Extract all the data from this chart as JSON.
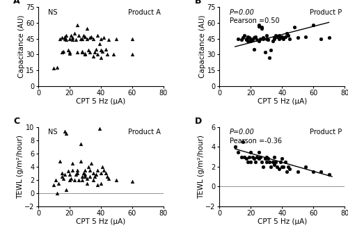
{
  "panel_A": {
    "label": "A",
    "stat": "NS",
    "stat_italic": false,
    "product": "Product A",
    "marker": "^",
    "x": [
      10,
      12,
      14,
      15,
      15,
      16,
      17,
      17,
      18,
      18,
      19,
      20,
      20,
      20,
      21,
      22,
      22,
      23,
      24,
      25,
      25,
      26,
      27,
      28,
      28,
      28,
      29,
      30,
      30,
      30,
      31,
      31,
      32,
      33,
      33,
      34,
      35,
      35,
      36,
      37,
      38,
      38,
      39,
      40,
      40,
      40,
      41,
      42,
      43,
      44,
      45,
      48,
      50,
      60,
      60
    ],
    "y": [
      17,
      18,
      45,
      32,
      46,
      33,
      47,
      45,
      44,
      48,
      34,
      32,
      45,
      31,
      48,
      44,
      46,
      50,
      44,
      32,
      58,
      48,
      45,
      32,
      33,
      45,
      48,
      30,
      31,
      47,
      45,
      55,
      34,
      46,
      32,
      47,
      28,
      45,
      32,
      35,
      48,
      30,
      40,
      34,
      27,
      45,
      33,
      46,
      35,
      30,
      44,
      30,
      45,
      45,
      30
    ],
    "xlim": [
      0,
      80
    ],
    "ylim": [
      0,
      75
    ],
    "xlabel": "CPT 5 Hz (μA)",
    "ylabel": "Capacitance (AU)",
    "xticks": [
      0,
      20,
      40,
      60,
      80
    ],
    "yticks": [
      0,
      15,
      30,
      45,
      60,
      75
    ],
    "has_line": false
  },
  "panel_B": {
    "label": "B",
    "stat": "P=0.00",
    "stat_italic": true,
    "pearson": "Pearson =0.50",
    "product": "Product P",
    "marker": "o",
    "x": [
      12,
      14,
      15,
      16,
      17,
      17,
      18,
      18,
      19,
      20,
      20,
      21,
      22,
      22,
      23,
      24,
      25,
      25,
      25,
      26,
      27,
      27,
      28,
      28,
      29,
      30,
      30,
      31,
      32,
      33,
      34,
      35,
      35,
      36,
      37,
      38,
      38,
      39,
      40,
      40,
      41,
      42,
      43,
      44,
      45,
      48,
      50,
      55,
      60,
      65,
      70
    ],
    "y": [
      45,
      44,
      46,
      48,
      45,
      44,
      43,
      47,
      46,
      43,
      45,
      44,
      46,
      35,
      47,
      44,
      43,
      57,
      58,
      45,
      55,
      56,
      45,
      46,
      32,
      45,
      48,
      44,
      27,
      34,
      43,
      45,
      46,
      48,
      47,
      48,
      45,
      46,
      47,
      46,
      45,
      47,
      50,
      48,
      45,
      56,
      46,
      47,
      58,
      45,
      46
    ],
    "line_x": [
      10,
      70
    ],
    "line_y": [
      37.5,
      60.5
    ],
    "xlim": [
      0,
      80
    ],
    "ylim": [
      0,
      75
    ],
    "xlabel": "CPT 5 Hz (μA)",
    "ylabel": "Capacitance (AU)",
    "xticks": [
      0,
      20,
      40,
      60,
      80
    ],
    "yticks": [
      0,
      15,
      30,
      45,
      60,
      75
    ],
    "has_line": true
  },
  "panel_C": {
    "label": "C",
    "stat": "NS",
    "stat_italic": false,
    "product": "Product A",
    "marker": "^",
    "x": [
      10,
      11,
      12,
      13,
      14,
      15,
      15,
      16,
      17,
      17,
      18,
      18,
      19,
      20,
      20,
      21,
      22,
      22,
      23,
      24,
      25,
      25,
      26,
      27,
      27,
      28,
      28,
      29,
      30,
      30,
      30,
      31,
      31,
      32,
      33,
      33,
      34,
      35,
      35,
      36,
      37,
      38,
      38,
      39,
      40,
      40,
      41,
      42,
      43,
      44,
      45,
      50,
      60
    ],
    "y": [
      1.2,
      2.0,
      0.0,
      1.5,
      4.8,
      2.5,
      3.0,
      2.2,
      2.8,
      9.4,
      9.0,
      0.5,
      3.3,
      2.0,
      2.8,
      2.2,
      3.5,
      4.5,
      2.0,
      2.8,
      3.5,
      3.0,
      2.0,
      4.8,
      7.5,
      2.5,
      2.0,
      3.0,
      2.5,
      2.8,
      3.5,
      1.5,
      2.2,
      4.0,
      2.5,
      3.5,
      4.5,
      2.0,
      3.0,
      2.5,
      2.8,
      1.2,
      3.5,
      9.8,
      1.5,
      3.0,
      4.0,
      3.5,
      3.0,
      2.5,
      2.2,
      2.0,
      1.8
    ],
    "xlim": [
      0,
      80
    ],
    "ylim": [
      -2,
      10
    ],
    "xlabel": "CPT 5 Hz (μA)",
    "ylabel": "TEWL (g/m²/hour)",
    "xticks": [
      0,
      20,
      40,
      60,
      80
    ],
    "yticks": [
      -2,
      0,
      2,
      4,
      6,
      8,
      10
    ],
    "has_line": false,
    "hline": 0
  },
  "panel_D": {
    "label": "D",
    "stat": "P=0.00",
    "stat_italic": true,
    "pearson": "Pearson =-0.36",
    "product": "Product P",
    "marker": "o",
    "x": [
      10,
      12,
      14,
      15,
      16,
      17,
      18,
      19,
      20,
      20,
      21,
      22,
      23,
      24,
      25,
      25,
      26,
      27,
      28,
      29,
      30,
      30,
      31,
      32,
      33,
      34,
      35,
      35,
      36,
      37,
      38,
      39,
      40,
      40,
      41,
      42,
      43,
      44,
      45,
      50,
      55,
      60,
      65,
      70
    ],
    "y": [
      4.0,
      3.5,
      3.0,
      4.5,
      3.0,
      2.8,
      2.5,
      3.0,
      2.5,
      3.5,
      3.0,
      2.8,
      2.5,
      3.0,
      2.8,
      3.5,
      3.0,
      2.5,
      2.0,
      2.8,
      2.5,
      3.0,
      2.8,
      2.5,
      2.0,
      2.5,
      2.2,
      3.0,
      2.5,
      2.0,
      1.8,
      2.5,
      2.0,
      2.8,
      2.0,
      2.5,
      1.5,
      2.0,
      1.8,
      1.5,
      2.0,
      1.5,
      1.5,
      1.2
    ],
    "line_x": [
      10,
      72
    ],
    "line_y": [
      3.8,
      1.0
    ],
    "xlim": [
      0,
      80
    ],
    "ylim": [
      -2,
      6
    ],
    "xlabel": "CPT 5 Hz (μA)",
    "ylabel": "TEWL (g/m²/hour)",
    "xticks": [
      0,
      20,
      40,
      60,
      80
    ],
    "yticks": [
      -2,
      0,
      2,
      4,
      6
    ],
    "has_line": true,
    "hline": 0
  },
  "marker_size": 12,
  "marker_color": "black",
  "font_size_label": 7.5,
  "font_size_tick": 7,
  "font_size_panel": 9,
  "font_size_annot": 7
}
